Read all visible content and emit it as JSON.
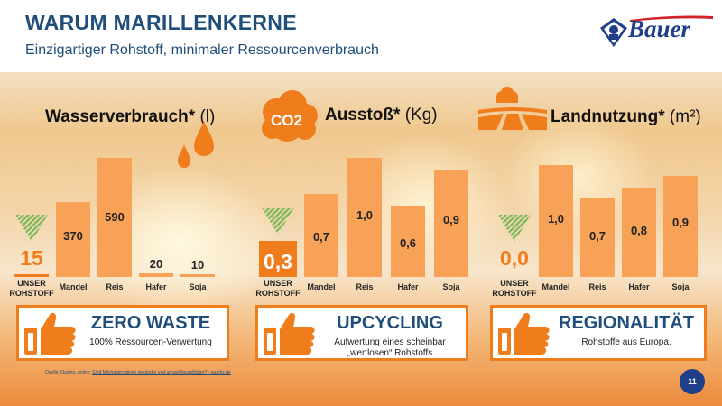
{
  "slide": {
    "title": "WARUM MARILLENKERNE",
    "subtitle": "Einzigartiger Rohstoff, minimaler Ressourcenverbrauch",
    "logo_text": "Bauer",
    "page_number": "11",
    "source_prefix": "Quelle: Quarks, online:",
    "source_link": "Sind Milchalternativen gesünder und umweltfreundlicher? - quarks.de"
  },
  "colors": {
    "title_blue": "#1f4e7a",
    "bar_orange": "#f7a257",
    "accent_orange": "#f07d1c",
    "check_green": "#7ab85a",
    "logo_blue": "#1f3f8a"
  },
  "icons": [
    "water-drops-icon",
    "co2-cloud-icon",
    "field-landscape-icon",
    "green-down-triangle-icon",
    "thumbs-up-icon",
    "logo-emblem-icon"
  ],
  "chart_data": [
    {
      "type": "bar",
      "title": "Wasserverbrauch*",
      "unit": "(l)",
      "categories": [
        "UNSER ROHSTOFF",
        "Mandel",
        "Reis",
        "Hafer",
        "Soja"
      ],
      "values": [
        15,
        370,
        590,
        20,
        10
      ],
      "value_labels": [
        "15",
        "370",
        "590",
        "20",
        "10"
      ],
      "grid": false
    },
    {
      "type": "bar",
      "title": "Ausstoß*",
      "title_prefix": "CO2",
      "unit": "(Kg)",
      "categories": [
        "UNSER ROHSTOFF",
        "Mandel",
        "Reis",
        "Hafer",
        "Soja"
      ],
      "values": [
        0.3,
        0.7,
        1.0,
        0.6,
        0.9
      ],
      "value_labels": [
        "0,3",
        "0,7",
        "1,0",
        "0,6",
        "0,9"
      ],
      "grid": false
    },
    {
      "type": "bar",
      "title": "Landnutzung*",
      "unit": "(m²)",
      "categories": [
        "UNSER ROHSTOFF",
        "Mandel",
        "Reis",
        "Hafer",
        "Soja"
      ],
      "values": [
        0.0,
        1.0,
        0.7,
        0.8,
        0.9
      ],
      "value_labels": [
        "0,0",
        "1,0",
        "0,7",
        "0,8",
        "0,9"
      ],
      "grid": false
    }
  ],
  "boxes": [
    {
      "title": "ZERO WASTE",
      "subtitle_lines": [
        "100% Ressourcen-Verwertung"
      ]
    },
    {
      "title": "UPCYCLING",
      "subtitle_lines": [
        "Aufwertung eines scheinbar",
        "„wertlosen“ Rohstoffs"
      ]
    },
    {
      "title": "REGIONALITÄT",
      "subtitle_lines": [
        "Rohstoffe aus Europa."
      ]
    }
  ]
}
